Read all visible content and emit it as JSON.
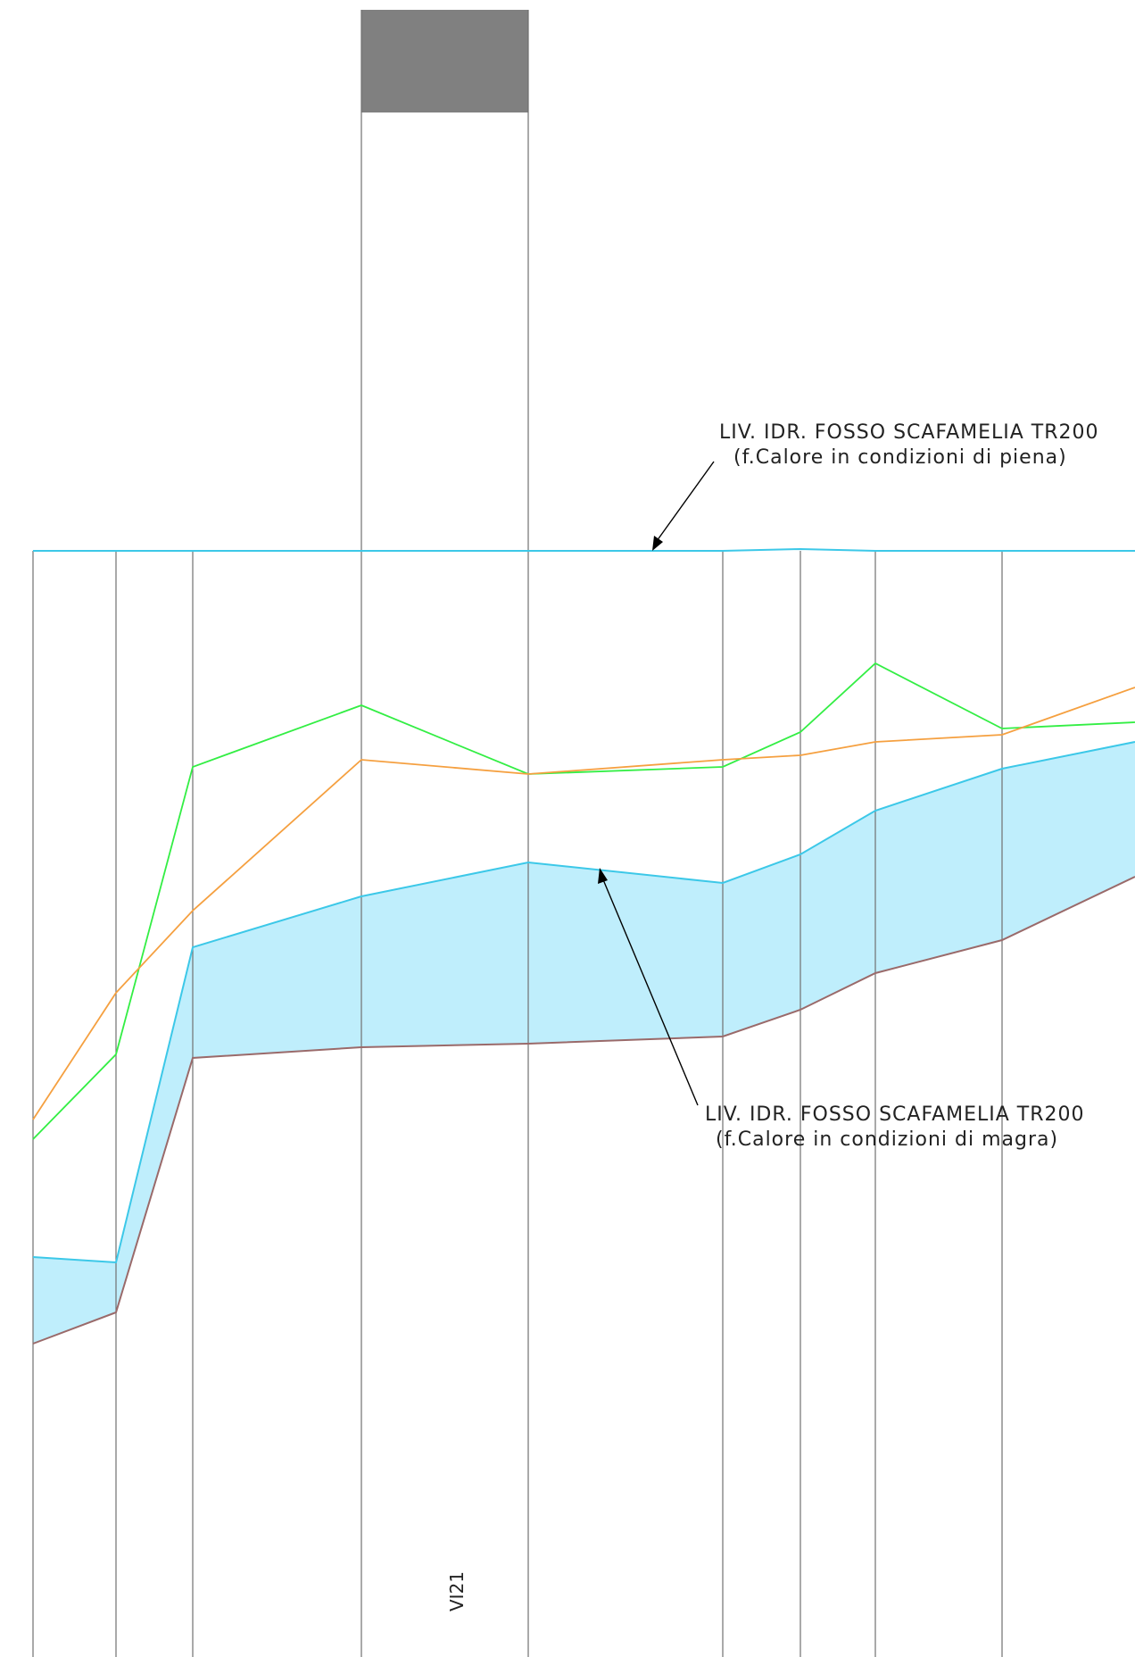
{
  "annotations": {
    "piena": {
      "line1": "LIV.  IDR.  FOSSO  SCAFAMELIA  TR200",
      "line2": "(f.Calore  in  condizioni  di  piena)"
    },
    "magra": {
      "line1": "LIV.  IDR.  FOSSO  SCAFAMELIA  TR200",
      "line2": "(f.Calore  in  condizioni  di  magra)"
    }
  },
  "section_label": "VI21",
  "colors": {
    "gridline": "#707070",
    "water_line": "#3cc8e8",
    "water_fill": "#bfeefc",
    "bed_line": "#9a6a6a",
    "green_line": "#33ee44",
    "orange_line": "#f5a040",
    "pier_block": "#808080"
  }
}
